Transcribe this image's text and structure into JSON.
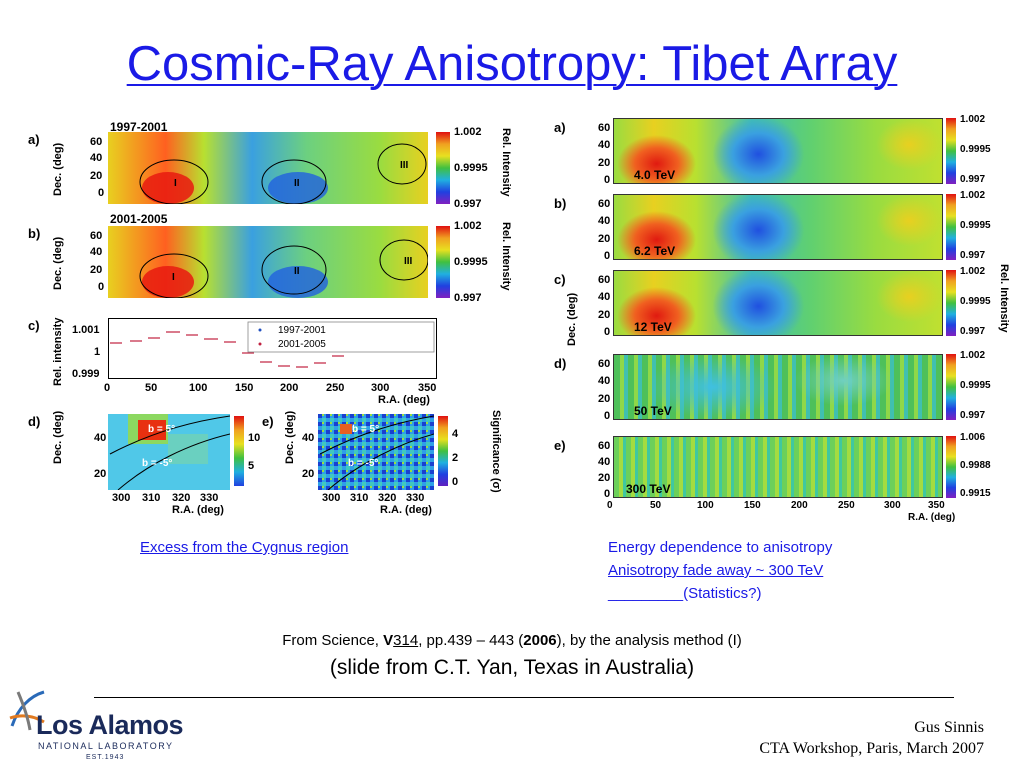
{
  "slide": {
    "title": "Cosmic-Ray Anisotropy: Tibet Array"
  },
  "left_figure": {
    "panel_a": {
      "label": "a)",
      "period": "1997-2001",
      "ylabel": "Dec. (deg)",
      "yticks": [
        "60",
        "40",
        "20",
        "0"
      ],
      "colorbar": [
        "1.002",
        "0.9995",
        "0.997"
      ],
      "colorbar_title": "Rel. Intensity",
      "regions": [
        "I",
        "II",
        "III"
      ]
    },
    "panel_b": {
      "label": "b)",
      "period": "2001-2005",
      "ylabel": "Dec. (deg)",
      "yticks": [
        "60",
        "40",
        "20",
        "0"
      ],
      "colorbar": [
        "1.002",
        "0.9995",
        "0.997"
      ],
      "colorbar_title": "Rel. Intensity",
      "regions": [
        "I",
        "II",
        "III"
      ]
    },
    "panel_c": {
      "label": "c)",
      "ylabel": "Rel. intensity",
      "yticks": [
        "1.001",
        "1",
        "0.999"
      ],
      "xticks": [
        "0",
        "50",
        "100",
        "150",
        "200",
        "250",
        "300",
        "350"
      ],
      "xlabel": "R.A. (deg)",
      "legend": [
        "1997-2001",
        "2001-2005"
      ]
    },
    "panel_d": {
      "label": "d)",
      "ylabel": "Dec. (deg)",
      "yticks": [
        "40",
        "20"
      ],
      "xticks": [
        "300",
        "310",
        "320",
        "330"
      ],
      "xlabel": "R.A. (deg)",
      "colorbar": [
        "10",
        "5"
      ],
      "lines": [
        "b = 5°",
        "b = -5°"
      ]
    },
    "panel_e": {
      "label": "e)",
      "ylabel": "Dec. (deg)",
      "yticks": [
        "40",
        "20"
      ],
      "xticks": [
        "300",
        "310",
        "320",
        "330"
      ],
      "xlabel": "R.A. (deg)",
      "colorbar": [
        "4",
        "2",
        "0"
      ],
      "colorbar_title": "Significance (σ)",
      "lines": [
        "b = 5°",
        "b = -5°"
      ]
    }
  },
  "right_figure": {
    "ylabel": "Dec. (deg)",
    "colorbar_title": "Rel. Intensity",
    "yticks": [
      "60",
      "40",
      "20",
      "0"
    ],
    "xticks": [
      "0",
      "50",
      "100",
      "150",
      "200",
      "250",
      "300",
      "350"
    ],
    "xlabel": "R.A. (deg)",
    "panels": [
      {
        "label": "a)",
        "energy": "4.0 TeV",
        "colorbar": [
          "1.002",
          "0.9995",
          "0.997"
        ]
      },
      {
        "label": "b)",
        "energy": "6.2 TeV",
        "colorbar": [
          "1.002",
          "0.9995",
          "0.997"
        ]
      },
      {
        "label": "c)",
        "energy": "12 TeV",
        "colorbar": [
          "1.002",
          "0.9995",
          "0.997"
        ]
      },
      {
        "label": "d)",
        "energy": "50 TeV",
        "colorbar": [
          "1.002",
          "0.9995",
          "0.997"
        ]
      },
      {
        "label": "e)",
        "energy": "300 TeV",
        "colorbar": [
          "1.006",
          "0.9988",
          "0.9915"
        ]
      }
    ]
  },
  "captions": {
    "left": "Excess from the Cygnus region",
    "right_line1": "Energy dependence to anisotropy",
    "right_line2": "Anisotropy fade away ~ 300 TeV",
    "right_line3_blank": "_________",
    "right_line3_text": "(Statistics?)"
  },
  "source": {
    "prefix": "From Science, ",
    "vol_v": "V",
    "vol_num": "314",
    "pages": ", pp.439 – 443 (",
    "year": "2006",
    "suffix": "),  by the analysis method (I)",
    "credit": "(slide from C.T. Yan, Texas in Australia)"
  },
  "logo": {
    "name": "Los Alamos",
    "sub": "NATIONAL LABORATORY",
    "est": "EST.1943"
  },
  "footer": {
    "author": "Gus Sinnis",
    "event": "CTA Workshop, Paris, March 2007"
  },
  "colors": {
    "title": "#1a1ae6",
    "map_bg": "#33c24a"
  }
}
